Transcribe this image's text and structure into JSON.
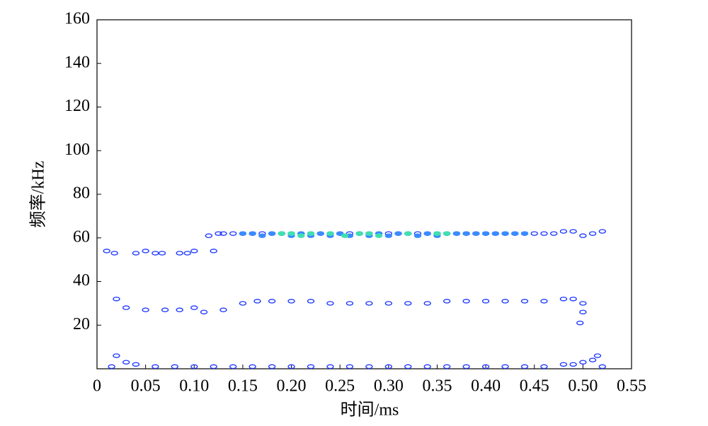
{
  "chart_data": {
    "type": "contour",
    "xlabel": "时间/ms",
    "ylabel": "频率/kHz",
    "xlim": [
      0,
      0.55
    ],
    "ylim": [
      0,
      160
    ],
    "xticks": [
      0,
      0.05,
      {
        "value": 0.1,
        "label": "0.10"
      },
      0.15,
      {
        "value": 0.2,
        "label": "0.20"
      },
      0.25,
      {
        "value": 0.3,
        "label": "0.30"
      },
      0.35,
      {
        "value": 0.4,
        "label": "0.40"
      },
      0.45,
      {
        "value": 0.5,
        "label": "0.50"
      },
      0.55
    ],
    "yticks": [
      20,
      40,
      60,
      80,
      100,
      120,
      140,
      160
    ],
    "series": [
      {
        "color": "#1a35ff",
        "x": [
          0.01,
          0.018,
          0.04,
          0.05,
          0.06,
          0.067,
          0.085,
          0.093,
          0.1,
          0.115,
          0.12,
          0.125,
          0.13,
          0.14,
          0.15,
          0.16,
          0.17,
          0.18,
          0.19,
          0.2,
          0.21,
          0.22,
          0.23,
          0.24,
          0.25,
          0.26,
          0.27,
          0.28,
          0.29,
          0.3,
          0.31,
          0.32,
          0.33,
          0.34,
          0.35,
          0.36,
          0.37,
          0.38,
          0.39,
          0.4,
          0.41,
          0.42,
          0.43,
          0.44,
          0.45,
          0.46,
          0.47,
          0.48,
          0.49,
          0.5,
          0.51,
          0.52
        ],
        "y": [
          54,
          53,
          53,
          54,
          53,
          53,
          53,
          53,
          54,
          61,
          54,
          62,
          62,
          62,
          62,
          62,
          62,
          62,
          62,
          62,
          62,
          62,
          62,
          62,
          62,
          62,
          62,
          62,
          62,
          62,
          62,
          62,
          62,
          62,
          62,
          62,
          62,
          62,
          62,
          62,
          62,
          62,
          62,
          62,
          62,
          62,
          62,
          63,
          63,
          61,
          62,
          63
        ]
      },
      {
        "color": "#3b8bff",
        "x": [
          0.15,
          0.16,
          0.17,
          0.18,
          0.19,
          0.2,
          0.21,
          0.22,
          0.23,
          0.24,
          0.25,
          0.26,
          0.27,
          0.28,
          0.29,
          0.3,
          0.31,
          0.32,
          0.33,
          0.34,
          0.35,
          0.36,
          0.37,
          0.38,
          0.39,
          0.4,
          0.41,
          0.42,
          0.43,
          0.44
        ],
        "y": [
          62,
          62,
          61,
          62,
          62,
          61,
          62,
          61,
          62,
          61,
          62,
          61,
          62,
          61,
          62,
          61,
          62,
          62,
          61,
          62,
          61,
          62,
          62,
          62,
          62,
          62,
          62,
          62,
          62,
          62
        ]
      },
      {
        "color": "#3fe0b0",
        "x": [
          0.19,
          0.2,
          0.21,
          0.22,
          0.24,
          0.255,
          0.27,
          0.28,
          0.29,
          0.32,
          0.35,
          0.36
        ],
        "y": [
          62,
          62,
          61,
          62,
          62,
          61,
          62,
          62,
          61,
          62,
          62,
          62
        ]
      },
      {
        "color": "#1a35ff",
        "x": [
          0.02,
          0.03,
          0.05,
          0.07,
          0.085,
          0.1,
          0.11,
          0.13,
          0.15,
          0.165,
          0.18,
          0.2,
          0.22,
          0.24,
          0.26,
          0.28,
          0.3,
          0.32,
          0.34,
          0.36,
          0.38,
          0.4,
          0.42,
          0.44,
          0.46,
          0.48,
          0.49,
          0.5,
          0.5,
          0.497
        ],
        "y": [
          32,
          28,
          27,
          27,
          27,
          28,
          26,
          27,
          30,
          31,
          31,
          31,
          31,
          30,
          30,
          30,
          30,
          30,
          30,
          31,
          31,
          31,
          31,
          31,
          31,
          32,
          32,
          30,
          26,
          21
        ]
      },
      {
        "color": "#1a35ff",
        "x": [
          0.015,
          0.02,
          0.03,
          0.04,
          0.06,
          0.08,
          0.1,
          0.12,
          0.14,
          0.16,
          0.18,
          0.2,
          0.22,
          0.24,
          0.26,
          0.28,
          0.3,
          0.32,
          0.34,
          0.36,
          0.38,
          0.4,
          0.42,
          0.44,
          0.46,
          0.48,
          0.49,
          0.5,
          0.51,
          0.515,
          0.52
        ],
        "y": [
          1,
          6,
          3,
          2,
          1,
          1,
          1,
          1,
          1,
          1,
          1,
          1,
          1,
          1,
          1,
          1,
          1,
          1,
          1,
          1,
          1,
          1,
          1,
          1,
          1,
          2,
          2,
          3,
          4,
          6,
          1
        ]
      }
    ]
  }
}
